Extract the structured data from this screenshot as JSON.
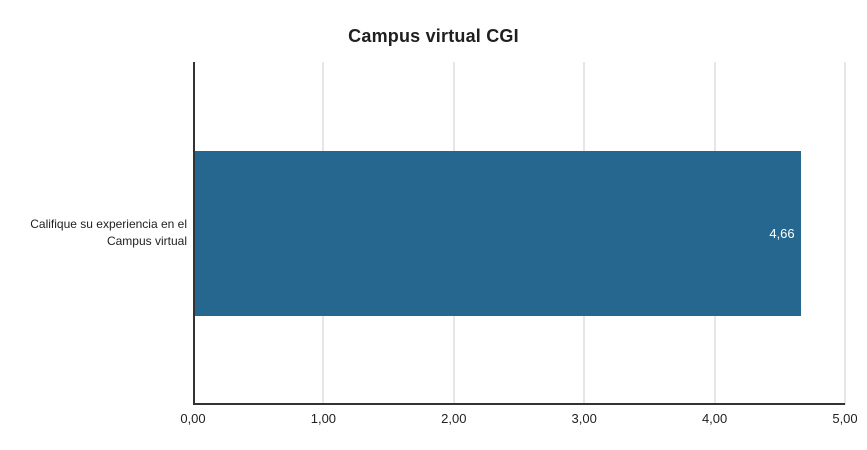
{
  "chart_data": {
    "type": "bar",
    "orientation": "horizontal",
    "title": "Campus virtual CGI",
    "categories": [
      "Califique su experiencia en el Campus virtual"
    ],
    "category_lines": [
      "Califique su experiencia en el",
      "Campus virtual"
    ],
    "values": [
      4.66
    ],
    "value_labels": [
      "4,66"
    ],
    "xlabel": "",
    "ylabel": "",
    "xlim": [
      0,
      5
    ],
    "x_ticks": [
      {
        "value": 0,
        "label": "0,00"
      },
      {
        "value": 1,
        "label": "1,00"
      },
      {
        "value": 2,
        "label": "2,00"
      },
      {
        "value": 3,
        "label": "3,00"
      },
      {
        "value": 4,
        "label": "4,00"
      },
      {
        "value": 5,
        "label": "5,00"
      }
    ],
    "grid": "vertical-only",
    "legend": "none",
    "colors": {
      "bar": "#26678F",
      "gridline": "#cccccc",
      "axis": "#333333",
      "value_label": "#ffffff"
    }
  }
}
